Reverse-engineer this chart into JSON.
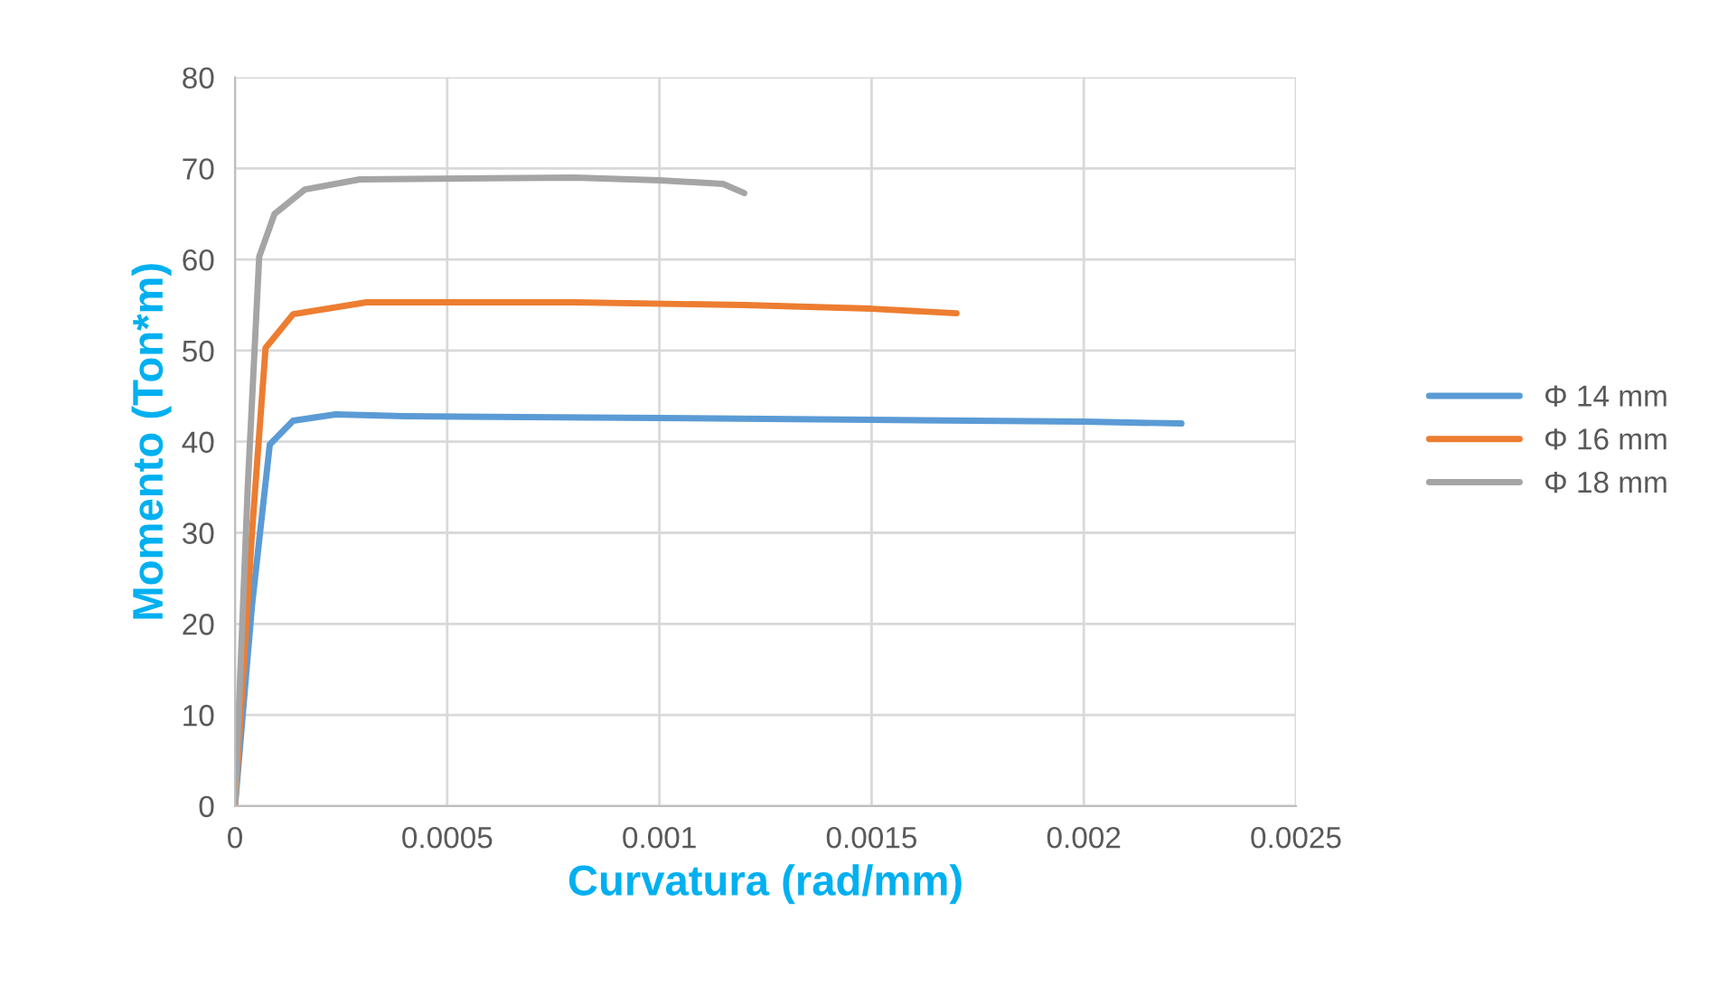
{
  "chart_data": {
    "type": "line",
    "xlabel": "Curvatura (rad/mm)",
    "ylabel": "Momento (Ton*m)",
    "xlim": [
      0,
      0.0025
    ],
    "xticks": [
      0,
      0.0005,
      0.001,
      0.0015,
      0.002,
      0.0025
    ],
    "ylim": [
      0,
      80
    ],
    "yticks": [
      0,
      10,
      20,
      30,
      40,
      50,
      60,
      70,
      80
    ],
    "grid": true,
    "legend": "right",
    "marker": "none",
    "line_style": "solid",
    "series": [
      {
        "name": "Φ 14 mm",
        "color": "#5b9bd5",
        "x": [
          0,
          4e-05,
          8.2e-05,
          0.000137,
          0.000237,
          0.0004,
          0.001,
          0.0015,
          0.002,
          0.00223
        ],
        "values": [
          0,
          22,
          39.7,
          42.3,
          43,
          42.8,
          42.6,
          42.4,
          42.2,
          42.0
        ]
      },
      {
        "name": "Φ 16 mm",
        "color": "#ed7d31",
        "x": [
          0,
          4e-05,
          7.2e-05,
          0.000137,
          0.00031,
          0.0008,
          0.0012,
          0.0015,
          0.0017
        ],
        "values": [
          0,
          30,
          50.3,
          54,
          55.3,
          55.3,
          55,
          54.6,
          54.1
        ]
      },
      {
        "name": "Φ 18 mm",
        "color": "#a5a5a5",
        "x": [
          0,
          3e-05,
          5.7e-05,
          9.3e-05,
          0.000165,
          0.000294,
          0.0008,
          0.001,
          0.00115,
          0.0012
        ],
        "values": [
          0,
          35,
          60.3,
          65,
          67.7,
          68.8,
          69,
          68.7,
          68.3,
          67.3
        ]
      }
    ]
  }
}
